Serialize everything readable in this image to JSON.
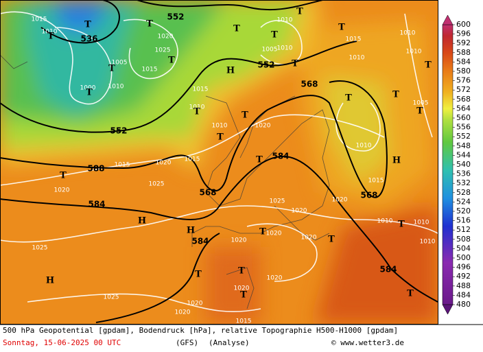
{
  "map": {
    "geopotential_labels": [
      "536",
      "552",
      "552",
      "552",
      "568",
      "568",
      "568",
      "584",
      "584",
      "584",
      "584",
      "588"
    ],
    "isobar_labels": [
      "1015",
      "1010",
      "1020",
      "1025",
      "1015",
      "1005",
      "1010",
      "1000",
      "1010",
      "1005",
      "1010",
      "1015",
      "1010",
      "1010",
      "1010",
      "1005",
      "1015",
      "1010",
      "1010",
      "1020",
      "1015",
      "1020",
      "1025",
      "1015",
      "1020",
      "1010",
      "1015",
      "1020",
      "1025",
      "1020",
      "1010",
      "1010",
      "1010",
      "1020",
      "1020",
      "1020",
      "1025",
      "1025",
      "1020",
      "1020",
      "1020",
      "1020",
      "1015"
    ],
    "markers": [
      "T",
      "T",
      "T",
      "T",
      "T",
      "T",
      "T",
      "T",
      "T",
      "T",
      "T",
      "T",
      "T",
      "T",
      "T",
      "T",
      "T",
      "T",
      "T",
      "T",
      "T",
      "T",
      "T",
      "T",
      "T",
      "T",
      "T",
      "H",
      "H",
      "H",
      "H",
      "H"
    ]
  },
  "colorbar": {
    "ticks": [
      600,
      596,
      592,
      588,
      584,
      580,
      576,
      572,
      568,
      564,
      560,
      556,
      552,
      548,
      544,
      540,
      536,
      532,
      528,
      524,
      520,
      516,
      512,
      508,
      504,
      500,
      496,
      492,
      488,
      484,
      480
    ]
  },
  "footer": {
    "line1": "500 hPa Geopotential [gpdam], Bodendruck [hPa], relative Topographie H500-H1000 [gpdam]",
    "date": "Sonntag, 15-06-2025  00 UTC",
    "model": "(GFS)",
    "run": "(Analyse)",
    "credit": "© www.wetter3.de"
  }
}
